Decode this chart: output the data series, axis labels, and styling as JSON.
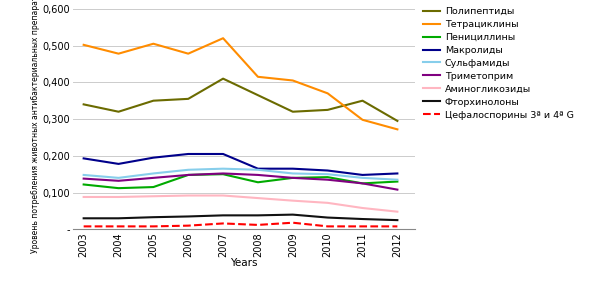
{
  "years": [
    2003,
    2004,
    2005,
    2006,
    2007,
    2008,
    2009,
    2010,
    2011,
    2012
  ],
  "series": [
    {
      "name": "Полипептиды",
      "values": [
        0.34,
        0.32,
        0.35,
        0.355,
        0.41,
        0.365,
        0.32,
        0.325,
        0.35,
        0.295
      ],
      "color": "#6B6B00",
      "linewidth": 1.5,
      "linestyle": "-"
    },
    {
      "name": "Тетрациклины",
      "values": [
        0.502,
        0.478,
        0.505,
        0.478,
        0.52,
        0.415,
        0.405,
        0.37,
        0.298,
        0.272
      ],
      "color": "#FF8C00",
      "linewidth": 1.5,
      "linestyle": "-"
    },
    {
      "name": "Пенициллины",
      "values": [
        0.122,
        0.112,
        0.115,
        0.148,
        0.15,
        0.128,
        0.14,
        0.142,
        0.125,
        0.13
      ],
      "color": "#00AA00",
      "linewidth": 1.5,
      "linestyle": "-"
    },
    {
      "name": "Макролиды",
      "values": [
        0.193,
        0.178,
        0.195,
        0.205,
        0.205,
        0.165,
        0.165,
        0.16,
        0.148,
        0.152
      ],
      "color": "#00008B",
      "linewidth": 1.5,
      "linestyle": "-"
    },
    {
      "name": "Сульфамиды",
      "values": [
        0.148,
        0.14,
        0.152,
        0.162,
        0.165,
        0.162,
        0.152,
        0.15,
        0.14,
        0.135
      ],
      "color": "#87CEEB",
      "linewidth": 1.5,
      "linestyle": "-"
    },
    {
      "name": "Триметоприм",
      "values": [
        0.138,
        0.132,
        0.14,
        0.148,
        0.152,
        0.148,
        0.14,
        0.135,
        0.125,
        0.108
      ],
      "color": "#800080",
      "linewidth": 1.5,
      "linestyle": "-"
    },
    {
      "name": "Аминогликозиды",
      "values": [
        0.088,
        0.088,
        0.09,
        0.092,
        0.092,
        0.085,
        0.078,
        0.072,
        0.058,
        0.048
      ],
      "color": "#FFB6C1",
      "linewidth": 1.5,
      "linestyle": "-"
    },
    {
      "name": "Фторхинолоны",
      "values": [
        0.03,
        0.03,
        0.033,
        0.035,
        0.038,
        0.038,
        0.04,
        0.032,
        0.028,
        0.025
      ],
      "color": "#111111",
      "linewidth": 1.5,
      "linestyle": "-"
    },
    {
      "name": "Цефалоспорины 3ª и 4ª G",
      "values": [
        0.008,
        0.008,
        0.008,
        0.01,
        0.016,
        0.012,
        0.018,
        0.008,
        0.008,
        0.008
      ],
      "color": "#FF0000",
      "linewidth": 1.5,
      "linestyle": "--"
    }
  ],
  "ylim": [
    0,
    0.6
  ],
  "yticks": [
    0.0,
    0.1,
    0.2,
    0.3,
    0.4,
    0.5,
    0.6
  ],
  "ytick_labels": [
    "-",
    "0,100",
    "0,200",
    "0,300",
    "0,400",
    "0,500",
    "0,600"
  ],
  "xlabel": "Years",
  "ylabel": "Уровень потребления животных антибактериальных препаратам",
  "background_color": "#ffffff",
  "grid_color": "#cccccc"
}
